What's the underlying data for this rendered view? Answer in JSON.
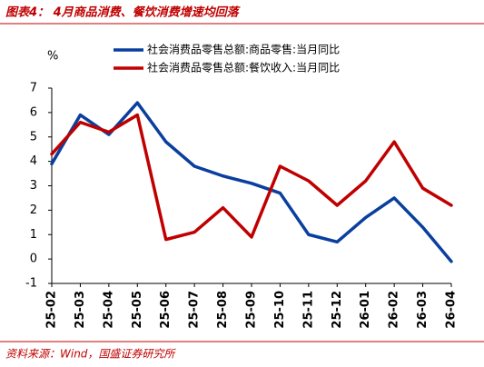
{
  "chart_data": {
    "type": "line",
    "title": "图表4： 4月商品消费、餐饮消费增速均回落",
    "source": "资料来源：Wind，国盛证券研究所",
    "y_label": "%",
    "categories": [
      "25-02",
      "25-03",
      "25-04",
      "25-05",
      "25-06",
      "25-07",
      "25-08",
      "25-09",
      "25-10",
      "25-11",
      "25-12",
      "26-01",
      "26-02",
      "26-03",
      "26-04"
    ],
    "series": [
      {
        "name": "社会消费品零售总额:商品零售:当月同比",
        "color": "#0a3f9e",
        "values": [
          3.9,
          5.9,
          5.1,
          6.4,
          4.8,
          3.8,
          3.4,
          3.1,
          2.7,
          1.0,
          0.7,
          1.7,
          2.5,
          1.3,
          -0.1
        ]
      },
      {
        "name": "社会消费品零售总额:餐饮收入:当月同比",
        "color": "#c00000",
        "values": [
          4.3,
          5.6,
          5.2,
          5.9,
          0.8,
          1.1,
          2.1,
          0.9,
          3.8,
          3.2,
          2.2,
          3.2,
          4.8,
          2.9,
          2.2
        ]
      }
    ],
    "ylim": [
      -1,
      7
    ],
    "yticks": [
      -1,
      0,
      1,
      2,
      3,
      4,
      5,
      6,
      7
    ]
  }
}
